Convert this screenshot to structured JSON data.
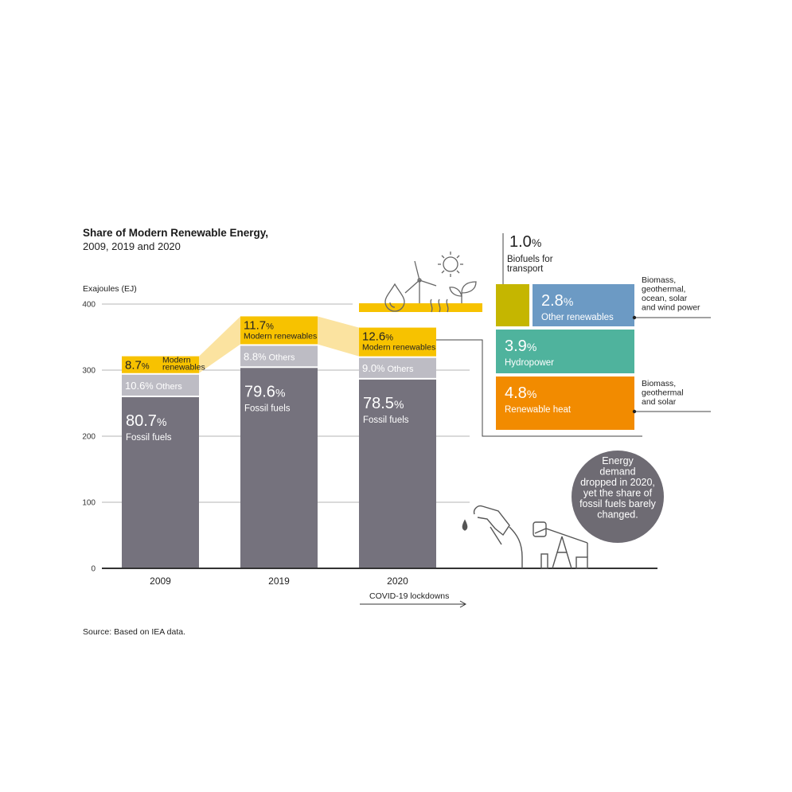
{
  "chart_data": {
    "type": "bar",
    "stacked": true,
    "title": "Share of Modern Renewable Energy,",
    "subtitle": "2009, 2019 and 2020",
    "ylabel": "Exajoules (EJ)",
    "ylim": [
      0,
      400
    ],
    "yticks": [
      "0",
      "100",
      "200",
      "300",
      "400"
    ],
    "categories": [
      "2009",
      "2019",
      "2020"
    ],
    "totals_ej": [
      321,
      381,
      364
    ],
    "series": [
      {
        "name": "Fossil fuels",
        "color": "#75727d",
        "values": [
          80.7,
          79.6,
          78.5
        ],
        "labels": [
          "80.7",
          "79.6",
          "78.5"
        ]
      },
      {
        "name": "Others",
        "color": "#bdbcc4",
        "values": [
          10.6,
          8.8,
          9.0
        ],
        "labels": [
          "10.6",
          "8.8",
          "9.0"
        ]
      },
      {
        "name": "Modern renewables",
        "color": "#f7c200",
        "values": [
          8.7,
          11.7,
          12.6
        ],
        "labels": [
          "8.7",
          "11.7",
          "12.6"
        ]
      }
    ],
    "series_labels": {
      "fossil": "Fossil fuels",
      "others": "Others",
      "renew_2009_a": "Modern",
      "renew_2009_b": "renewables",
      "renew": "Modern renewables"
    },
    "percent_sign": "%",
    "annotation": "COVID-19 lockdowns",
    "source": "Source: Based on IEA data.",
    "breakdown_2020": [
      {
        "value": "1.0",
        "label_lines": [
          "Biofuels for",
          "transport"
        ],
        "color": "#c5b600"
      },
      {
        "value": "2.8",
        "label_lines": [
          "Other renewables"
        ],
        "color": "#6c9ac4",
        "note_lines": [
          "Biomass,",
          "geothermal,",
          "ocean, solar",
          "and wind power"
        ]
      },
      {
        "value": "3.9",
        "label_lines": [
          "Hydropower"
        ],
        "color": "#4fb39d"
      },
      {
        "value": "4.8",
        "label_lines": [
          "Renewable heat"
        ],
        "color": "#f28b00",
        "note_lines": [
          "Biomass,",
          "geothermal",
          "and solar"
        ]
      }
    ],
    "callout_lines": [
      "Energy",
      "demand",
      "dropped in 2020,",
      "yet the share of",
      "fossil fuels barely",
      "changed."
    ]
  },
  "colors": {
    "fossil": "#75727d",
    "others": "#bdbcc4",
    "renewables": "#f7c200",
    "renewables_connector": "#fbe3a0",
    "callout": "#6e6b73",
    "axis": "#333333",
    "grid": "#b5b5b5"
  },
  "icons": [
    "water-drop-icon",
    "wind-turbine-icon",
    "sun-icon",
    "sprout-icon",
    "fuel-pump-icon",
    "oil-pumpjack-icon"
  ]
}
